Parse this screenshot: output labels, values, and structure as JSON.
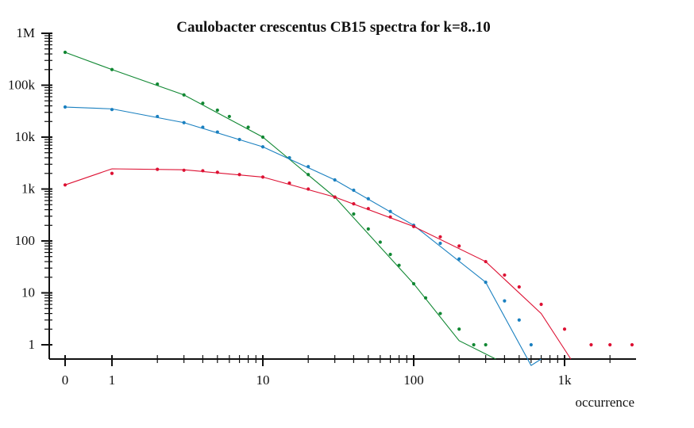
{
  "chart_data": {
    "type": "scatter",
    "title": "Caulobacter crescentus CB15 spectra for k=8..10",
    "xlabel": "occurrence",
    "ylabel": "",
    "x_scale": "log1p",
    "y_scale": "log1p",
    "xlim": [
      0,
      3000
    ],
    "ylim": [
      0,
      1500000
    ],
    "x_ticks": [
      {
        "value": 0,
        "label": "0"
      },
      {
        "value": 1,
        "label": "1"
      },
      {
        "value": 10,
        "label": "10"
      },
      {
        "value": 100,
        "label": "100"
      },
      {
        "value": 1000,
        "label": "1k"
      }
    ],
    "y_ticks": [
      {
        "value": 1,
        "label": "1"
      },
      {
        "value": 10,
        "label": "10"
      },
      {
        "value": 100,
        "label": "100"
      },
      {
        "value": 1000,
        "label": "1k"
      },
      {
        "value": 10000,
        "label": "10k"
      },
      {
        "value": 100000,
        "label": "100k"
      },
      {
        "value": 1000000,
        "label": "1M"
      }
    ],
    "grid": false,
    "legend": "none",
    "series": [
      {
        "color": "#118833",
        "points": [
          [
            0,
            430000
          ],
          [
            1,
            200000
          ],
          [
            2,
            105000
          ],
          [
            3,
            65000
          ],
          [
            4,
            45000
          ],
          [
            5,
            33000
          ],
          [
            6,
            25000
          ],
          [
            8,
            15500
          ],
          [
            10,
            10000
          ],
          [
            15,
            4000
          ],
          [
            20,
            1900
          ],
          [
            30,
            700
          ],
          [
            40,
            330
          ],
          [
            50,
            170
          ],
          [
            60,
            95
          ],
          [
            70,
            55
          ],
          [
            80,
            34
          ],
          [
            100,
            15
          ],
          [
            120,
            8
          ],
          [
            150,
            4
          ],
          [
            200,
            2
          ],
          [
            250,
            1
          ],
          [
            300,
            1
          ]
        ],
        "fit": [
          [
            0,
            430000
          ],
          [
            1,
            200000
          ],
          [
            3,
            65000
          ],
          [
            10,
            10000
          ],
          [
            30,
            700
          ],
          [
            100,
            15
          ],
          [
            200,
            1.2
          ],
          [
            350,
            0
          ]
        ]
      },
      {
        "color": "#1a80c0",
        "points": [
          [
            0,
            38000
          ],
          [
            1,
            34000
          ],
          [
            2,
            25000
          ],
          [
            3,
            19000
          ],
          [
            4,
            15500
          ],
          [
            5,
            12500
          ],
          [
            7,
            9000
          ],
          [
            10,
            6500
          ],
          [
            15,
            4000
          ],
          [
            20,
            2700
          ],
          [
            30,
            1500
          ],
          [
            40,
            950
          ],
          [
            50,
            650
          ],
          [
            70,
            370
          ],
          [
            100,
            200
          ],
          [
            150,
            90
          ],
          [
            200,
            45
          ],
          [
            300,
            16
          ],
          [
            400,
            7
          ],
          [
            500,
            3
          ],
          [
            600,
            1
          ]
        ],
        "fit": [
          [
            0,
            38000
          ],
          [
            1,
            35000
          ],
          [
            3,
            19000
          ],
          [
            10,
            6500
          ],
          [
            30,
            1500
          ],
          [
            100,
            200
          ],
          [
            300,
            16
          ],
          [
            600,
            0.4
          ],
          [
            700,
            0
          ]
        ]
      },
      {
        "color": "#dd1133",
        "points": [
          [
            0,
            1200
          ],
          [
            1,
            2000
          ],
          [
            2,
            2400
          ],
          [
            3,
            2300
          ],
          [
            4,
            2250
          ],
          [
            5,
            2100
          ],
          [
            7,
            1900
          ],
          [
            10,
            1700
          ],
          [
            15,
            1300
          ],
          [
            20,
            1000
          ],
          [
            30,
            700
          ],
          [
            40,
            520
          ],
          [
            50,
            420
          ],
          [
            70,
            290
          ],
          [
            100,
            190
          ],
          [
            150,
            120
          ],
          [
            200,
            80
          ],
          [
            300,
            40
          ],
          [
            400,
            22
          ],
          [
            500,
            13
          ],
          [
            700,
            6
          ],
          [
            1000,
            2
          ],
          [
            1500,
            1
          ],
          [
            2000,
            1
          ],
          [
            2800,
            1
          ]
        ],
        "fit": [
          [
            0,
            1200
          ],
          [
            1,
            2450
          ],
          [
            3,
            2350
          ],
          [
            10,
            1700
          ],
          [
            30,
            700
          ],
          [
            100,
            190
          ],
          [
            300,
            40
          ],
          [
            700,
            4
          ],
          [
            1100,
            0
          ]
        ]
      }
    ]
  }
}
